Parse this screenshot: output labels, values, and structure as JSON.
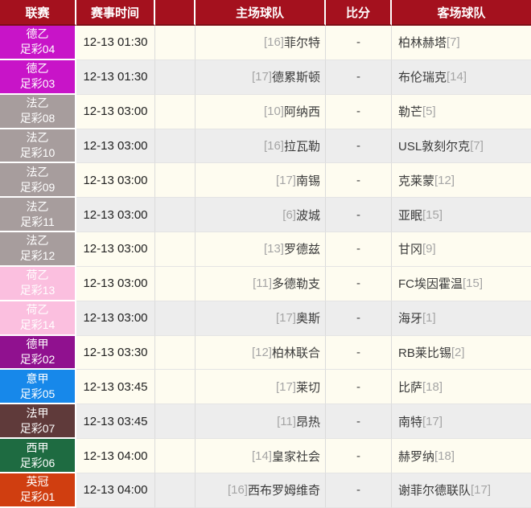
{
  "header": {
    "league": "联赛",
    "time": "赛事时间",
    "spacer": "",
    "home": "主场球队",
    "score": "比分",
    "away": "客场球队"
  },
  "colors": {
    "header_bg": "#A4111E",
    "header_text": "#FFFFFF",
    "header_bottom_line": "#7D0D16",
    "row_light": "#FEFCF0",
    "row_dark": "#EDEDED",
    "grid_line": "#DBDBDB",
    "rank_text": "#A5A5A5",
    "team_text": "#3A3A3A",
    "league_de2": "#C814C8",
    "league_fr2": "#A79D9D",
    "league_nl2": "#FBBFDF",
    "league_de1": "#90118F",
    "league_it1": "#1788EA",
    "league_fr1": "#5F3A3A",
    "league_es1": "#1E6B41",
    "league_en2": "#D03E10"
  },
  "rows": [
    {
      "league": "德乙",
      "code": "足彩04",
      "color": "#C814C8",
      "bg": "#FEFCF0",
      "time": "12-13 01:30",
      "home_rank": "[16]",
      "home": "菲尔特",
      "score": "-",
      "away": "柏林赫塔",
      "away_rank": "[7]"
    },
    {
      "league": "德乙",
      "code": "足彩03",
      "color": "#C814C8",
      "bg": "#EDEDED",
      "time": "12-13 01:30",
      "home_rank": "[17]",
      "home": "德累斯顿",
      "score": "-",
      "away": "布伦瑞克",
      "away_rank": "[14]"
    },
    {
      "league": "法乙",
      "code": "足彩08",
      "color": "#A79D9D",
      "bg": "#FEFCF0",
      "time": "12-13 03:00",
      "home_rank": "[10]",
      "home": "阿纳西",
      "score": "-",
      "away": "勒芒",
      "away_rank": "[5]"
    },
    {
      "league": "法乙",
      "code": "足彩10",
      "color": "#A79D9D",
      "bg": "#EDEDED",
      "time": "12-13 03:00",
      "home_rank": "[16]",
      "home": "拉瓦勒",
      "score": "-",
      "away": "USL敦刻尔克",
      "away_rank": "[7]"
    },
    {
      "league": "法乙",
      "code": "足彩09",
      "color": "#A79D9D",
      "bg": "#FEFCF0",
      "time": "12-13 03:00",
      "home_rank": "[17]",
      "home": "南锡",
      "score": "-",
      "away": "克莱蒙",
      "away_rank": "[12]"
    },
    {
      "league": "法乙",
      "code": "足彩11",
      "color": "#A79D9D",
      "bg": "#EDEDED",
      "time": "12-13 03:00",
      "home_rank": "[6]",
      "home": "波城",
      "score": "-",
      "away": "亚眠",
      "away_rank": "[15]"
    },
    {
      "league": "法乙",
      "code": "足彩12",
      "color": "#A79D9D",
      "bg": "#FEFCF0",
      "time": "12-13 03:00",
      "home_rank": "[13]",
      "home": "罗德兹",
      "score": "-",
      "away": "甘冈",
      "away_rank": "[9]"
    },
    {
      "league": "荷乙",
      "code": "足彩13",
      "color": "#FBBFDF",
      "bg": "#FEFCF0",
      "time": "12-13 03:00",
      "home_rank": "[11]",
      "home": "多德勒支",
      "score": "-",
      "away": "FC埃因霍温",
      "away_rank": "[15]"
    },
    {
      "league": "荷乙",
      "code": "足彩14",
      "color": "#FBBFDF",
      "bg": "#EDEDED",
      "time": "12-13 03:00",
      "home_rank": "[17]",
      "home": "奥斯",
      "score": "-",
      "away": "海牙",
      "away_rank": "[1]"
    },
    {
      "league": "德甲",
      "code": "足彩02",
      "color": "#90118F",
      "bg": "#FEFCF0",
      "time": "12-13 03:30",
      "home_rank": "[12]",
      "home": "柏林联合",
      "score": "-",
      "away": "RB莱比锡",
      "away_rank": "[2]"
    },
    {
      "league": "意甲",
      "code": "足彩05",
      "color": "#1788EA",
      "bg": "#FEFCF0",
      "time": "12-13 03:45",
      "home_rank": "[17]",
      "home": "莱切",
      "score": "-",
      "away": "比萨",
      "away_rank": "[18]"
    },
    {
      "league": "法甲",
      "code": "足彩07",
      "color": "#5F3A3A",
      "bg": "#EDEDED",
      "time": "12-13 03:45",
      "home_rank": "[11]",
      "home": "昂热",
      "score": "-",
      "away": "南特",
      "away_rank": "[17]"
    },
    {
      "league": "西甲",
      "code": "足彩06",
      "color": "#1E6B41",
      "bg": "#FEFCF0",
      "time": "12-13 04:00",
      "home_rank": "[14]",
      "home": "皇家社会",
      "score": "-",
      "away": "赫罗纳",
      "away_rank": "[18]"
    },
    {
      "league": "英冠",
      "code": "足彩01",
      "color": "#D03E10",
      "bg": "#EDEDED",
      "time": "12-13 04:00",
      "home_rank": "[16]",
      "home": "西布罗姆维奇",
      "score": "-",
      "away": "谢菲尔德联队",
      "away_rank": "[17]"
    }
  ]
}
